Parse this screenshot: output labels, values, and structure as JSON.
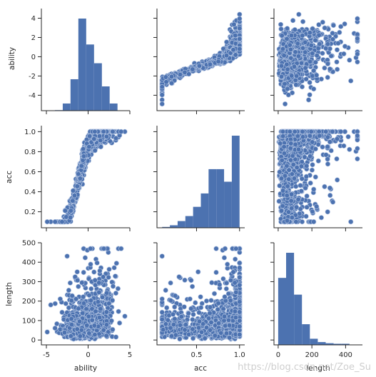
{
  "chart_data": {
    "type": "pairplot",
    "variables": [
      "ability",
      "acc",
      "length"
    ],
    "axis_labels": {
      "ability": "ability",
      "acc": "acc",
      "length": "length"
    },
    "axes": {
      "ability": {
        "range": [
          -5.6,
          5.0
        ],
        "ticks": [
          -4,
          -2,
          0,
          2,
          4
        ],
        "bottom_ticks": [
          -5,
          0,
          5
        ]
      },
      "acc": {
        "range": [
          0.04,
          1.06
        ],
        "ticks": [
          0.2,
          0.4,
          0.6,
          0.8,
          1.0
        ],
        "bottom_ticks": [
          0.5,
          1.0
        ]
      },
      "length": {
        "range": [
          -25,
          500
        ],
        "ticks": [
          0,
          100,
          200,
          300,
          400,
          500
        ],
        "bottom_ticks": [
          0,
          200,
          400
        ]
      }
    },
    "colors": {
      "marker": "#4c72b0",
      "edge": "#b8c8e4"
    },
    "histograms": {
      "ability": {
        "edges": [
          -4.92,
          -3.98,
          -3.04,
          -2.11,
          -1.17,
          -0.23,
          0.71,
          1.65,
          2.58,
          3.52,
          4.46
        ],
        "counts": [
          0,
          1,
          13,
          57,
          167,
          120,
          86,
          44,
          13,
          0
        ]
      },
      "acc": {
        "edges": [
          0.1,
          0.19,
          0.28,
          0.37,
          0.46,
          0.55,
          0.64,
          0.73,
          0.82,
          0.91,
          1.0
        ],
        "counts": [
          1,
          3,
          8,
          14,
          25,
          41,
          70,
          70,
          55,
          110
        ]
      },
      "length": {
        "edges": [
          0,
          47,
          94,
          141,
          188,
          235,
          282,
          329,
          376,
          423,
          470
        ],
        "counts": [
          120,
          165,
          90,
          37,
          11,
          5,
          3,
          2,
          2,
          0
        ]
      }
    }
  },
  "watermark": "https://blog.csdn.net/Zoe_Su"
}
